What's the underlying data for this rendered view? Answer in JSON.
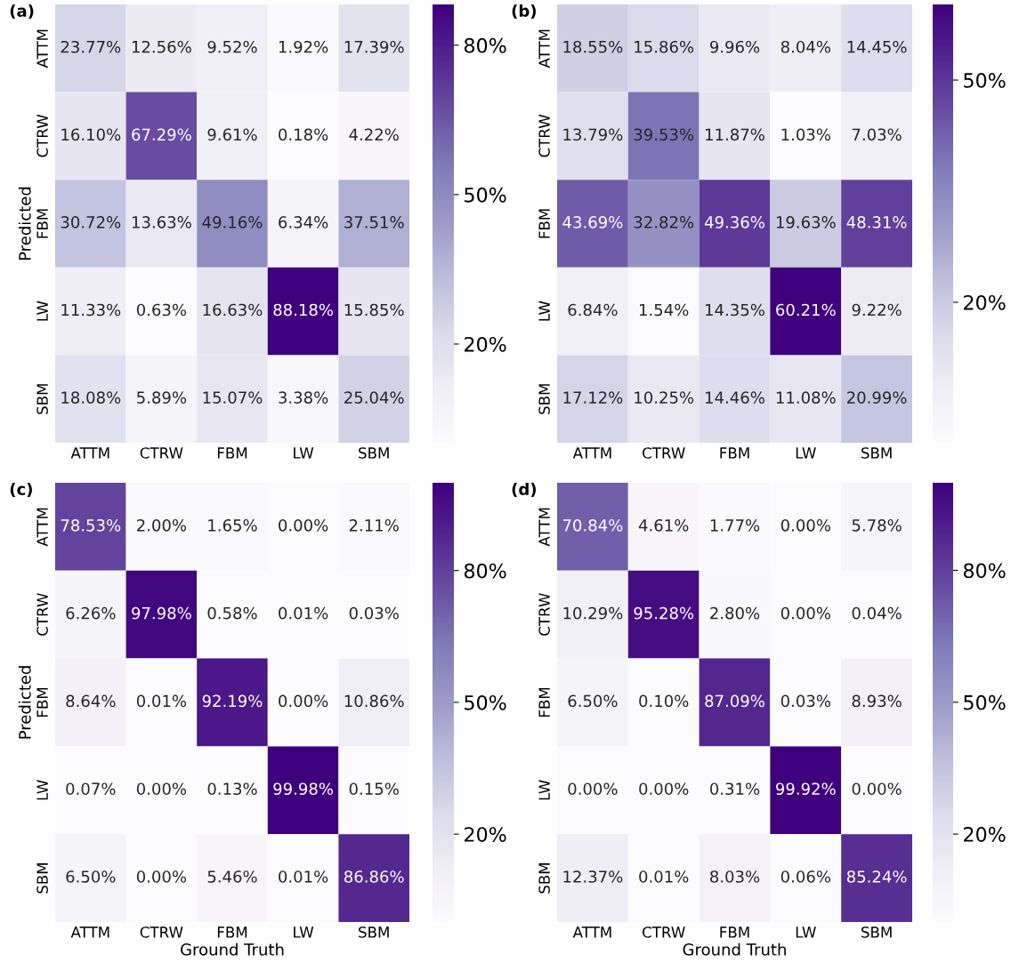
{
  "chart_data": [
    {
      "type": "heatmap",
      "title": "(a)",
      "ylabel": "Predicted",
      "categories": [
        "ATTM",
        "CTRW",
        "FBM",
        "LW",
        "SBM"
      ],
      "y_categories": [
        "ATTM",
        "CTRW",
        "FBM",
        "LW",
        "SBM"
      ],
      "cells": [
        [
          23.77,
          12.56,
          9.52,
          1.92,
          17.39
        ],
        [
          16.1,
          67.29,
          9.61,
          0.18,
          4.22
        ],
        [
          30.72,
          13.63,
          49.16,
          6.34,
          37.51
        ],
        [
          11.33,
          0.63,
          16.63,
          88.18,
          15.85
        ],
        [
          18.08,
          5.89,
          15.07,
          3.38,
          25.04
        ]
      ],
      "cell_labels": [
        [
          "23.77%",
          "12.56%",
          "9.52%",
          "1.92%",
          "17.39%"
        ],
        [
          "16.10%",
          "67.29%",
          "9.61%",
          "0.18%",
          "4.22%"
        ],
        [
          "30.72%",
          "13.63%",
          "49.16%",
          "6.34%",
          "37.51%"
        ],
        [
          "11.33%",
          "0.63%",
          "16.63%",
          "88.18%",
          "15.85%"
        ],
        [
          "18.08%",
          "5.89%",
          "15.07%",
          "3.38%",
          "25.04%"
        ]
      ],
      "clim": [
        0.18,
        88.18
      ],
      "cticks": [
        {
          "value": 20,
          "label": "20%"
        },
        {
          "value": 50,
          "label": "50%"
        },
        {
          "value": 80,
          "label": "80%"
        }
      ]
    },
    {
      "type": "heatmap",
      "title": "(b)",
      "categories": [
        "ATTM",
        "CTRW",
        "FBM",
        "LW",
        "SBM"
      ],
      "y_categories": [
        "ATTM",
        "CTRW",
        "FBM",
        "LW",
        "SBM"
      ],
      "cells": [
        [
          18.55,
          15.86,
          9.96,
          8.04,
          14.45
        ],
        [
          13.79,
          39.53,
          11.87,
          1.03,
          7.03
        ],
        [
          43.69,
          32.82,
          49.36,
          19.63,
          48.31
        ],
        [
          6.84,
          1.54,
          14.35,
          60.21,
          9.22
        ],
        [
          17.12,
          10.25,
          14.46,
          11.08,
          20.99
        ]
      ],
      "cell_labels": [
        [
          "18.55%",
          "15.86%",
          "9.96%",
          "8.04%",
          "14.45%"
        ],
        [
          "13.79%",
          "39.53%",
          "11.87%",
          "1.03%",
          "7.03%"
        ],
        [
          "43.69%",
          "32.82%",
          "49.36%",
          "19.63%",
          "48.31%"
        ],
        [
          "6.84%",
          "1.54%",
          "14.35%",
          "60.21%",
          "9.22%"
        ],
        [
          "17.12%",
          "10.25%",
          "14.46%",
          "11.08%",
          "20.99%"
        ]
      ],
      "clim": [
        1.03,
        60.21
      ],
      "cticks": [
        {
          "value": 20,
          "label": "20%"
        },
        {
          "value": 50,
          "label": "50%"
        }
      ]
    },
    {
      "type": "heatmap",
      "title": "(c)",
      "ylabel": "Predicted",
      "xlabel": "Ground Truth",
      "categories": [
        "ATTM",
        "CTRW",
        "FBM",
        "LW",
        "SBM"
      ],
      "y_categories": [
        "ATTM",
        "CTRW",
        "FBM",
        "LW",
        "SBM"
      ],
      "cells": [
        [
          78.53,
          2.0,
          1.65,
          0.0,
          2.11
        ],
        [
          6.26,
          97.98,
          0.58,
          0.01,
          0.03
        ],
        [
          8.64,
          0.01,
          92.19,
          0.0,
          10.86
        ],
        [
          0.07,
          0.0,
          0.13,
          99.98,
          0.15
        ],
        [
          6.5,
          0.0,
          5.46,
          0.01,
          86.86
        ]
      ],
      "cell_labels": [
        [
          "78.53%",
          "2.00%",
          "1.65%",
          "0.00%",
          "2.11%"
        ],
        [
          "6.26%",
          "97.98%",
          "0.58%",
          "0.01%",
          "0.03%"
        ],
        [
          "8.64%",
          "0.01%",
          "92.19%",
          "0.00%",
          "10.86%"
        ],
        [
          "0.07%",
          "0.00%",
          "0.13%",
          "99.98%",
          "0.15%"
        ],
        [
          "6.50%",
          "0.00%",
          "5.46%",
          "0.01%",
          "86.86%"
        ]
      ],
      "clim": [
        0.0,
        99.98
      ],
      "cticks": [
        {
          "value": 20,
          "label": "20%"
        },
        {
          "value": 50,
          "label": "50%"
        },
        {
          "value": 80,
          "label": "80%"
        }
      ]
    },
    {
      "type": "heatmap",
      "title": "(d)",
      "xlabel": "Ground Truth",
      "categories": [
        "ATTM",
        "CTRW",
        "FBM",
        "LW",
        "SBM"
      ],
      "y_categories": [
        "ATTM",
        "CTRW",
        "FBM",
        "LW",
        "SBM"
      ],
      "cells": [
        [
          70.84,
          4.61,
          1.77,
          0.0,
          5.78
        ],
        [
          10.29,
          95.28,
          2.8,
          0.0,
          0.04
        ],
        [
          6.5,
          0.1,
          87.09,
          0.03,
          8.93
        ],
        [
          0.0,
          0.0,
          0.31,
          99.92,
          0.0
        ],
        [
          12.37,
          0.01,
          8.03,
          0.06,
          85.24
        ]
      ],
      "cell_labels": [
        [
          "70.84%",
          "4.61%",
          "1.77%",
          "0.00%",
          "5.78%"
        ],
        [
          "10.29%",
          "95.28%",
          "2.80%",
          "0.00%",
          "0.04%"
        ],
        [
          "6.50%",
          "0.10%",
          "87.09%",
          "0.03%",
          "8.93%"
        ],
        [
          "0.00%",
          "0.00%",
          "0.31%",
          "99.92%",
          "0.00%"
        ],
        [
          "12.37%",
          "0.01%",
          "8.03%",
          "0.06%",
          "85.24%"
        ]
      ],
      "clim": [
        0.0,
        99.92
      ],
      "cticks": [
        {
          "value": 20,
          "label": "20%"
        },
        {
          "value": 50,
          "label": "50%"
        },
        {
          "value": 80,
          "label": "80%"
        }
      ]
    }
  ]
}
